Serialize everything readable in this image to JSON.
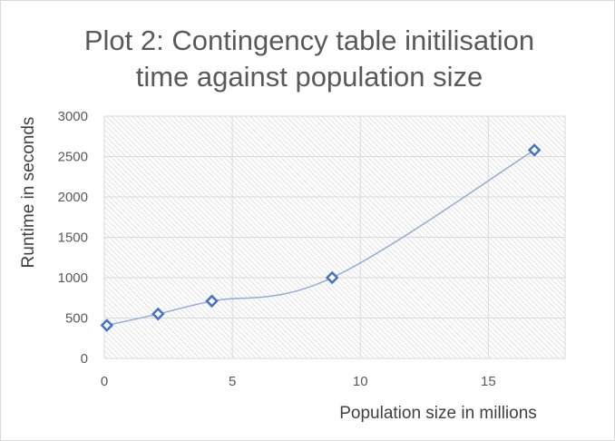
{
  "chart_data": {
    "type": "scatter",
    "title_line1": "Plot 2: Contingency table initilisation",
    "title_line2": "time against population size",
    "xlabel": "Population size in millions",
    "ylabel": "Runtime in seconds",
    "xlim": [
      0,
      18
    ],
    "ylim": [
      0,
      3000
    ],
    "x_ticks": [
      "0",
      "5",
      "10",
      "15"
    ],
    "y_ticks": [
      "0",
      "500",
      "1000",
      "1500",
      "2000",
      "2500",
      "3000"
    ],
    "grid": true,
    "smoothed_line": true,
    "series": [
      {
        "x": [
          0.1,
          2.1,
          4.2,
          8.9,
          16.8
        ],
        "y": [
          410,
          550,
          710,
          1000,
          2580
        ]
      }
    ],
    "colors": {
      "series": "#4472C4",
      "line": "#8FAADC",
      "grid": "#d9d9d9",
      "hatch": "#c8c8c8"
    }
  }
}
